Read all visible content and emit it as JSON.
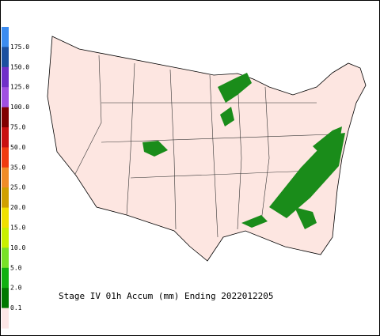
{
  "title": "Stage IV 01h Accum (mm) Ending 2022012205",
  "legend": {
    "labels": [
      "175.0",
      "150.0",
      "125.0",
      "100.0",
      "75.0",
      "50.0",
      "35.0",
      "25.0",
      "20.0",
      "15.0",
      "10.0",
      "5.0",
      "2.0",
      "0.1"
    ],
    "colors": [
      "#3c8cf0",
      "#1c50a0",
      "#7030c8",
      "#a050e0",
      "#800000",
      "#c81010",
      "#f03c10",
      "#f08c28",
      "#d0a000",
      "#f0e000",
      "#c8f000",
      "#78e028",
      "#10b010",
      "#007800",
      "#fde6e6"
    ]
  }
}
